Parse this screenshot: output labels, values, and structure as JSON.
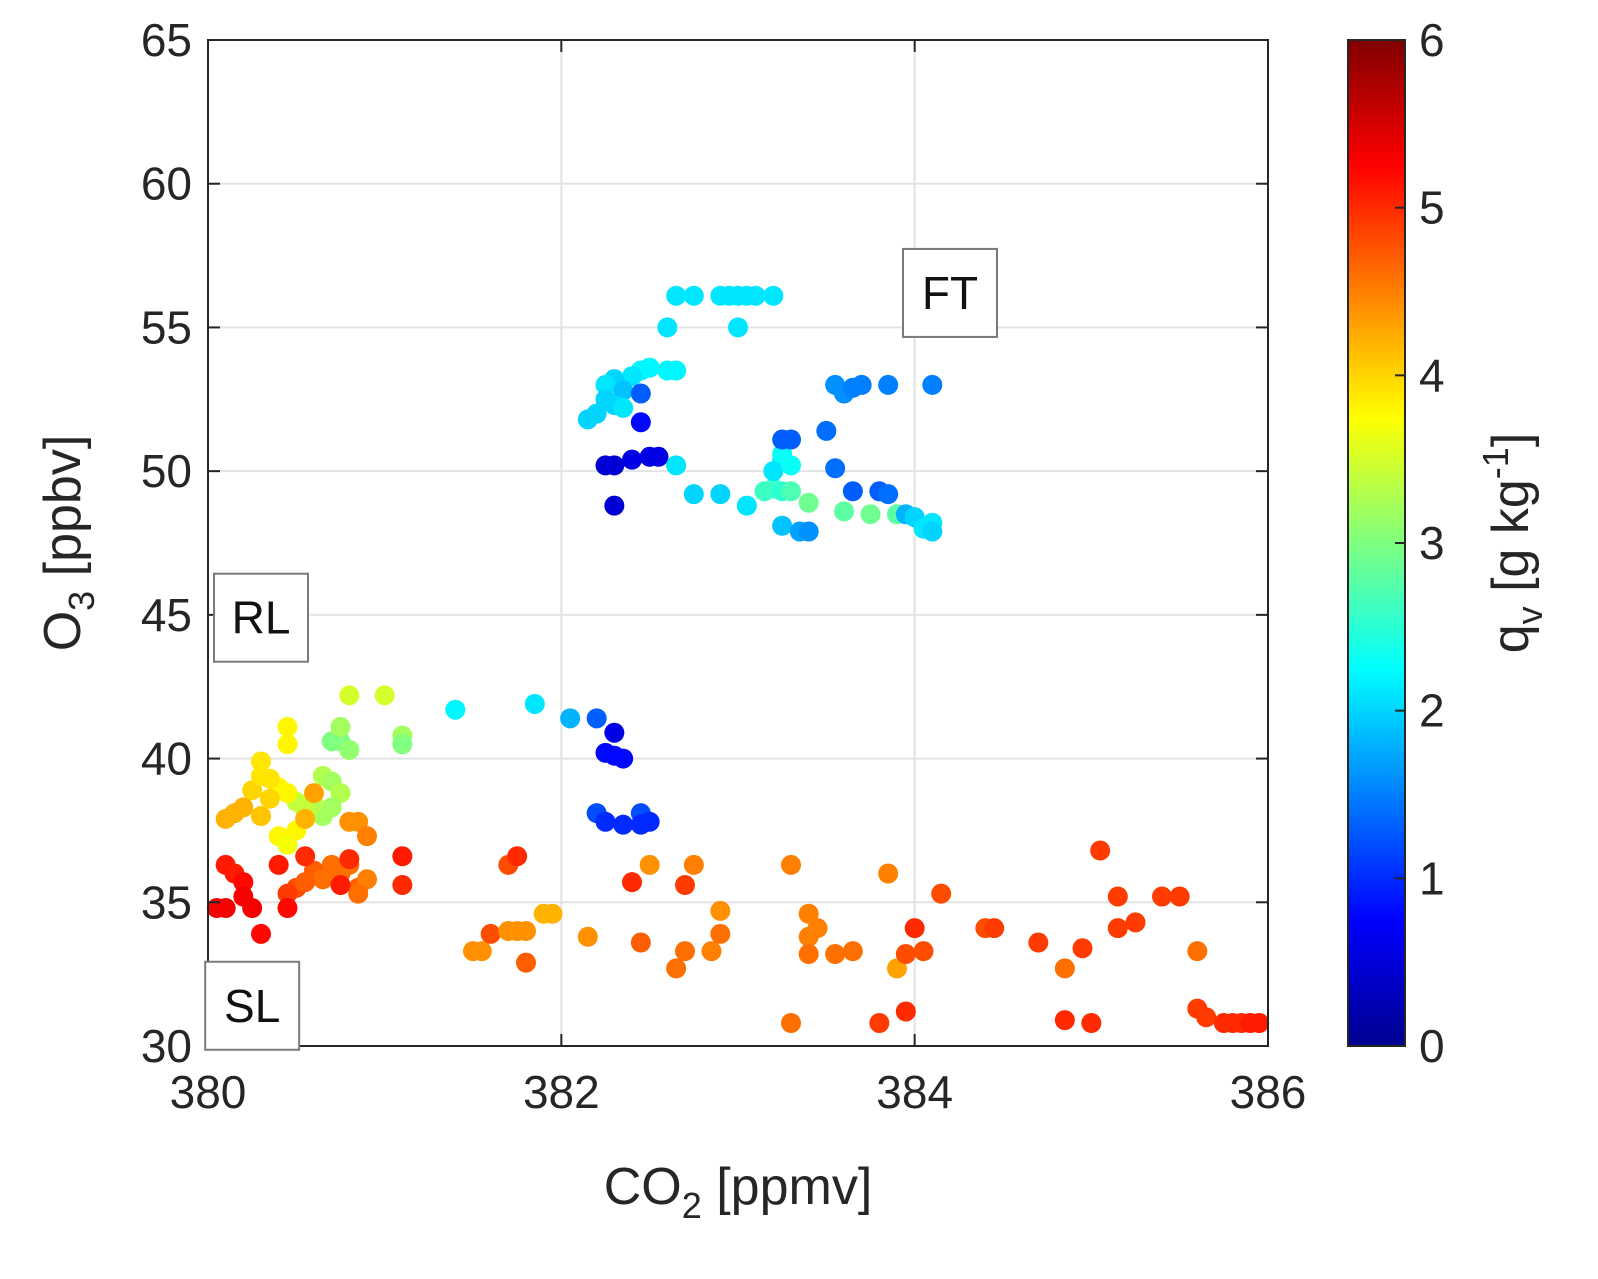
{
  "chart_data": {
    "type": "scatter",
    "xlabel": {
      "main": "CO",
      "sub": "2",
      "unit": " [ppmv]"
    },
    "ylabel": {
      "main": "O",
      "sub": "3",
      "unit": " [ppbv]"
    },
    "xlim": [
      380,
      386
    ],
    "ylim": [
      30,
      65
    ],
    "xticks": [
      "380",
      "382",
      "384",
      "386"
    ],
    "yticks": [
      "30",
      "35",
      "40",
      "45",
      "50",
      "55",
      "60",
      "65"
    ],
    "grid": true,
    "colorbar": {
      "label": {
        "main": "q",
        "sub": "v",
        "unit": " [g kg",
        "sup": "-1",
        "close": "]"
      },
      "range": [
        0,
        6
      ],
      "ticks": [
        "0",
        "1",
        "2",
        "3",
        "4",
        "5",
        "6"
      ],
      "colormap": "jet"
    },
    "annotations": [
      {
        "label": "FT",
        "x": 384.2,
        "y": 56.2
      },
      {
        "label": "RL",
        "x": 380.3,
        "y": 44.9
      },
      {
        "label": "SL",
        "x": 380.25,
        "y": 31.4
      }
    ],
    "points": [
      [
        382.65,
        56.1,
        2.1
      ],
      [
        382.75,
        56.1,
        2.1
      ],
      [
        382.9,
        56.1,
        2.1
      ],
      [
        382.95,
        56.1,
        2.1
      ],
      [
        383.0,
        56.1,
        2.1
      ],
      [
        383.05,
        56.1,
        2.1
      ],
      [
        383.1,
        56.1,
        2.1
      ],
      [
        383.2,
        56.1,
        2.1
      ],
      [
        382.6,
        55.0,
        2.1
      ],
      [
        383.0,
        55.0,
        2.1
      ],
      [
        382.6,
        53.5,
        2.2
      ],
      [
        382.65,
        53.5,
        2.2
      ],
      [
        382.5,
        53.6,
        2.2
      ],
      [
        382.45,
        53.5,
        2.2
      ],
      [
        382.4,
        53.3,
        2.1
      ],
      [
        382.3,
        53.2,
        2.0
      ],
      [
        382.25,
        53.0,
        2.1
      ],
      [
        382.35,
        52.8,
        1.9
      ],
      [
        382.25,
        52.5,
        2.0
      ],
      [
        382.3,
        52.3,
        2.0
      ],
      [
        382.2,
        52.0,
        2.0
      ],
      [
        382.15,
        51.8,
        2.0
      ],
      [
        382.35,
        52.2,
        2.1
      ],
      [
        382.45,
        52.7,
        1.3
      ],
      [
        382.45,
        51.7,
        0.8
      ],
      [
        382.25,
        50.2,
        0.5
      ],
      [
        382.3,
        50.2,
        0.5
      ],
      [
        382.4,
        50.4,
        0.6
      ],
      [
        382.5,
        50.5,
        0.6
      ],
      [
        382.55,
        50.5,
        0.6
      ],
      [
        382.3,
        48.8,
        0.5
      ],
      [
        382.65,
        50.2,
        2.1
      ],
      [
        382.75,
        49.2,
        2.0
      ],
      [
        382.9,
        49.2,
        2.0
      ],
      [
        383.05,
        48.8,
        2.1
      ],
      [
        383.15,
        49.3,
        2.6
      ],
      [
        383.2,
        49.4,
        2.6
      ],
      [
        383.25,
        49.3,
        2.5
      ],
      [
        383.3,
        49.3,
        2.7
      ],
      [
        383.2,
        50.0,
        2.1
      ],
      [
        383.25,
        50.4,
        2.1
      ],
      [
        383.3,
        50.2,
        2.3
      ],
      [
        383.25,
        50.6,
        2.3
      ],
      [
        383.25,
        51.1,
        1.3
      ],
      [
        383.3,
        51.1,
        1.3
      ],
      [
        383.5,
        51.4,
        1.4
      ],
      [
        383.4,
        48.9,
        2.9
      ],
      [
        383.6,
        48.6,
        2.8
      ],
      [
        383.75,
        48.5,
        2.9
      ],
      [
        383.9,
        48.5,
        2.8
      ],
      [
        383.25,
        48.1,
        1.9
      ],
      [
        383.35,
        47.9,
        1.7
      ],
      [
        383.4,
        47.9,
        1.6
      ],
      [
        383.55,
        50.1,
        1.4
      ],
      [
        383.65,
        49.3,
        1.3
      ],
      [
        383.8,
        49.3,
        1.3
      ],
      [
        383.85,
        49.2,
        1.4
      ],
      [
        383.95,
        48.5,
        1.8
      ],
      [
        384.0,
        48.4,
        2.0
      ],
      [
        384.05,
        48.0,
        2.1
      ],
      [
        384.1,
        48.2,
        2.1
      ],
      [
        384.1,
        47.9,
        2.0
      ],
      [
        383.55,
        53.0,
        1.6
      ],
      [
        383.6,
        52.7,
        1.6
      ],
      [
        383.65,
        52.9,
        1.5
      ],
      [
        383.7,
        53.0,
        1.5
      ],
      [
        383.85,
        53.0,
        1.5
      ],
      [
        384.1,
        53.0,
        1.5
      ],
      [
        380.8,
        42.2,
        3.5
      ],
      [
        381.0,
        42.2,
        3.5
      ],
      [
        381.1,
        40.8,
        3.2
      ],
      [
        381.1,
        40.5,
        3.0
      ],
      [
        380.75,
        40.6,
        3.0
      ],
      [
        380.7,
        40.6,
        3.0
      ],
      [
        380.8,
        40.3,
        3.1
      ],
      [
        380.75,
        41.1,
        3.2
      ],
      [
        380.65,
        39.4,
        3.3
      ],
      [
        380.7,
        39.2,
        3.2
      ],
      [
        380.75,
        38.8,
        3.3
      ],
      [
        380.7,
        38.3,
        3.2
      ],
      [
        380.65,
        38.0,
        3.2
      ],
      [
        380.6,
        38.4,
        3.3
      ],
      [
        380.55,
        38.2,
        3.4
      ],
      [
        380.5,
        38.5,
        3.4
      ],
      [
        380.45,
        38.8,
        3.8
      ],
      [
        380.4,
        39.0,
        3.8
      ],
      [
        380.35,
        39.3,
        3.9
      ],
      [
        380.3,
        39.9,
        3.9
      ],
      [
        380.45,
        41.1,
        3.8
      ],
      [
        380.45,
        40.5,
        3.8
      ],
      [
        380.35,
        38.6,
        4.0
      ],
      [
        380.3,
        38.0,
        4.1
      ],
      [
        380.4,
        37.3,
        3.8
      ],
      [
        380.45,
        37.0,
        3.7
      ],
      [
        380.5,
        37.5,
        3.8
      ],
      [
        380.2,
        38.3,
        4.2
      ],
      [
        380.15,
        38.1,
        4.2
      ],
      [
        380.1,
        37.9,
        4.2
      ],
      [
        380.25,
        38.9,
        4.0
      ],
      [
        380.3,
        39.4,
        3.9
      ],
      [
        380.55,
        37.9,
        4.2
      ],
      [
        380.6,
        38.8,
        4.3
      ],
      [
        380.8,
        37.8,
        4.4
      ],
      [
        380.85,
        37.8,
        4.4
      ],
      [
        380.9,
        37.3,
        4.5
      ],
      [
        380.7,
        36.3,
        4.6
      ],
      [
        380.75,
        36.0,
        4.6
      ],
      [
        380.8,
        36.3,
        4.6
      ],
      [
        380.6,
        36.1,
        4.7
      ],
      [
        380.65,
        35.8,
        4.6
      ],
      [
        380.5,
        35.5,
        4.8
      ],
      [
        380.45,
        35.3,
        4.9
      ],
      [
        380.55,
        35.7,
        4.7
      ],
      [
        380.85,
        35.5,
        4.7
      ],
      [
        380.9,
        35.8,
        4.5
      ],
      [
        380.85,
        35.3,
        4.6
      ],
      [
        380.1,
        36.3,
        5.1
      ],
      [
        380.15,
        36.0,
        5.1
      ],
      [
        380.2,
        35.7,
        5.2
      ],
      [
        380.2,
        35.2,
        5.3
      ],
      [
        380.1,
        34.8,
        5.3
      ],
      [
        380.05,
        34.8,
        5.3
      ],
      [
        380.25,
        34.8,
        5.3
      ],
      [
        380.3,
        33.9,
        5.2
      ],
      [
        380.4,
        36.3,
        5.1
      ],
      [
        380.45,
        34.8,
        5.2
      ],
      [
        380.55,
        36.6,
        5.0
      ],
      [
        380.75,
        35.6,
        5.1
      ],
      [
        380.8,
        36.5,
        5.0
      ],
      [
        381.1,
        36.6,
        5.1
      ],
      [
        381.1,
        35.6,
        5.0
      ],
      [
        381.4,
        41.7,
        2.2
      ],
      [
        381.85,
        41.9,
        2.1
      ],
      [
        382.05,
        41.4,
        1.8
      ],
      [
        382.2,
        41.4,
        1.3
      ],
      [
        382.3,
        40.9,
        0.6
      ],
      [
        382.25,
        40.2,
        0.8
      ],
      [
        382.3,
        40.1,
        0.8
      ],
      [
        382.35,
        40.0,
        0.8
      ],
      [
        382.2,
        38.1,
        1.2
      ],
      [
        382.25,
        37.8,
        1.0
      ],
      [
        382.35,
        37.7,
        1.0
      ],
      [
        382.45,
        38.1,
        1.2
      ],
      [
        382.5,
        37.8,
        1.0
      ],
      [
        382.45,
        37.7,
        1.0
      ],
      [
        381.5,
        33.3,
        4.4
      ],
      [
        381.55,
        33.3,
        4.4
      ],
      [
        381.6,
        33.9,
        4.8
      ],
      [
        381.7,
        34.0,
        4.4
      ],
      [
        381.75,
        34.0,
        4.4
      ],
      [
        381.8,
        34.0,
        4.4
      ],
      [
        381.7,
        36.3,
        4.8
      ],
      [
        381.75,
        36.6,
        5.0
      ],
      [
        381.8,
        32.9,
        4.7
      ],
      [
        381.9,
        34.6,
        4.2
      ],
      [
        381.95,
        34.6,
        4.2
      ],
      [
        382.15,
        33.8,
        4.4
      ],
      [
        382.4,
        35.7,
        5.0
      ],
      [
        382.45,
        33.6,
        4.7
      ],
      [
        382.5,
        36.3,
        4.4
      ],
      [
        382.65,
        32.7,
        4.6
      ],
      [
        382.7,
        33.3,
        4.6
      ],
      [
        382.7,
        35.6,
        4.9
      ],
      [
        382.75,
        36.3,
        4.5
      ],
      [
        382.85,
        33.3,
        4.5
      ],
      [
        382.9,
        33.9,
        4.6
      ],
      [
        382.9,
        34.7,
        4.4
      ],
      [
        383.3,
        36.3,
        4.5
      ],
      [
        383.3,
        30.8,
        4.6
      ],
      [
        383.4,
        34.6,
        4.5
      ],
      [
        383.4,
        33.8,
        4.5
      ],
      [
        383.45,
        34.1,
        4.5
      ],
      [
        383.4,
        33.2,
        4.6
      ],
      [
        383.55,
        33.2,
        4.6
      ],
      [
        383.65,
        33.3,
        4.6
      ],
      [
        383.8,
        30.8,
        4.9
      ],
      [
        383.85,
        36.0,
        4.5
      ],
      [
        383.9,
        32.7,
        4.3
      ],
      [
        383.95,
        33.2,
        4.8
      ],
      [
        383.95,
        31.2,
        5.0
      ],
      [
        384.0,
        34.1,
        5.0
      ],
      [
        384.05,
        33.3,
        4.8
      ],
      [
        384.15,
        35.3,
        4.8
      ],
      [
        384.4,
        34.1,
        4.8
      ],
      [
        384.45,
        34.1,
        4.9
      ],
      [
        384.7,
        33.6,
        4.9
      ],
      [
        384.85,
        32.7,
        4.6
      ],
      [
        384.85,
        30.9,
        5.0
      ],
      [
        384.95,
        33.4,
        4.9
      ],
      [
        385.0,
        30.8,
        5.0
      ],
      [
        385.05,
        36.8,
        4.9
      ],
      [
        385.15,
        35.2,
        4.9
      ],
      [
        385.15,
        34.1,
        4.9
      ],
      [
        385.25,
        34.3,
        4.9
      ],
      [
        385.4,
        35.2,
        4.9
      ],
      [
        385.5,
        35.2,
        4.9
      ],
      [
        385.6,
        33.3,
        4.6
      ],
      [
        385.6,
        31.3,
        4.9
      ],
      [
        385.65,
        31.0,
        4.9
      ],
      [
        385.75,
        30.8,
        5.0
      ],
      [
        385.8,
        30.8,
        5.0
      ],
      [
        385.85,
        30.8,
        5.0
      ],
      [
        385.9,
        30.8,
        5.1
      ],
      [
        385.95,
        30.8,
        5.1
      ]
    ]
  }
}
